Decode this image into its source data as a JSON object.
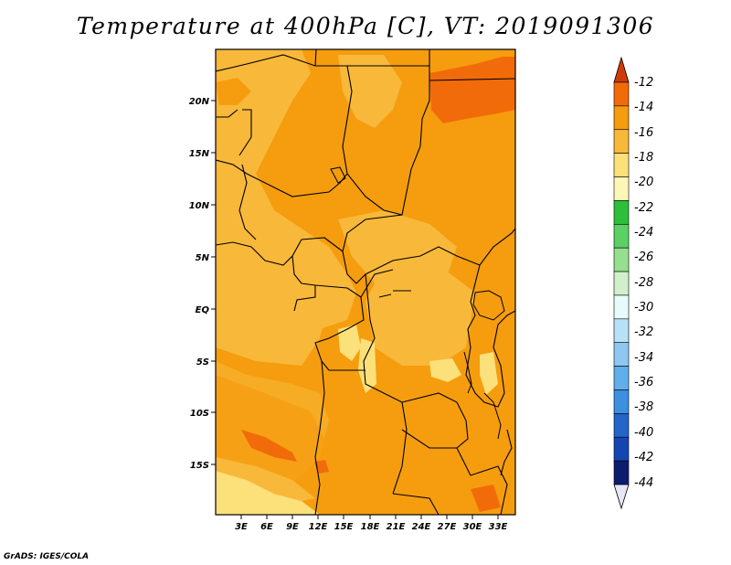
{
  "title": "Temperature at 400hPa [C], VT: 2019091306",
  "map": {
    "variable": "Temperature",
    "level": "400hPa",
    "units": "C",
    "valid_time": "2019091306",
    "lat_labels": [
      "20N",
      "15N",
      "10N",
      "5N",
      "EQ",
      "5S",
      "10S",
      "15S"
    ],
    "lon_labels": [
      "3E",
      "6E",
      "9E",
      "12E",
      "15E",
      "18E",
      "21E",
      "24E",
      "27E",
      "30E",
      "33E"
    ]
  },
  "colorbar": {
    "levels": [
      "-12",
      "-14",
      "-16",
      "-18",
      "-20",
      "-22",
      "-24",
      "-26",
      "-28",
      "-30",
      "-32",
      "-34",
      "-36",
      "-38",
      "-40",
      "-42",
      "-44"
    ],
    "colors": [
      "#d03a0a",
      "#f26b0a",
      "#f59d0e",
      "#f8b83a",
      "#fce07a",
      "#fef6b6",
      "#2ebf3a",
      "#5ad065",
      "#95e08f",
      "#cff0cb",
      "#e8fbfb",
      "#b8e1f7",
      "#8ec8f2",
      "#62aeeb",
      "#3d8fe0",
      "#2365c9",
      "#1546b0",
      "#0c1d6e",
      "#e6e6f6"
    ]
  },
  "credit": "GrADS: IGES/COLA"
}
